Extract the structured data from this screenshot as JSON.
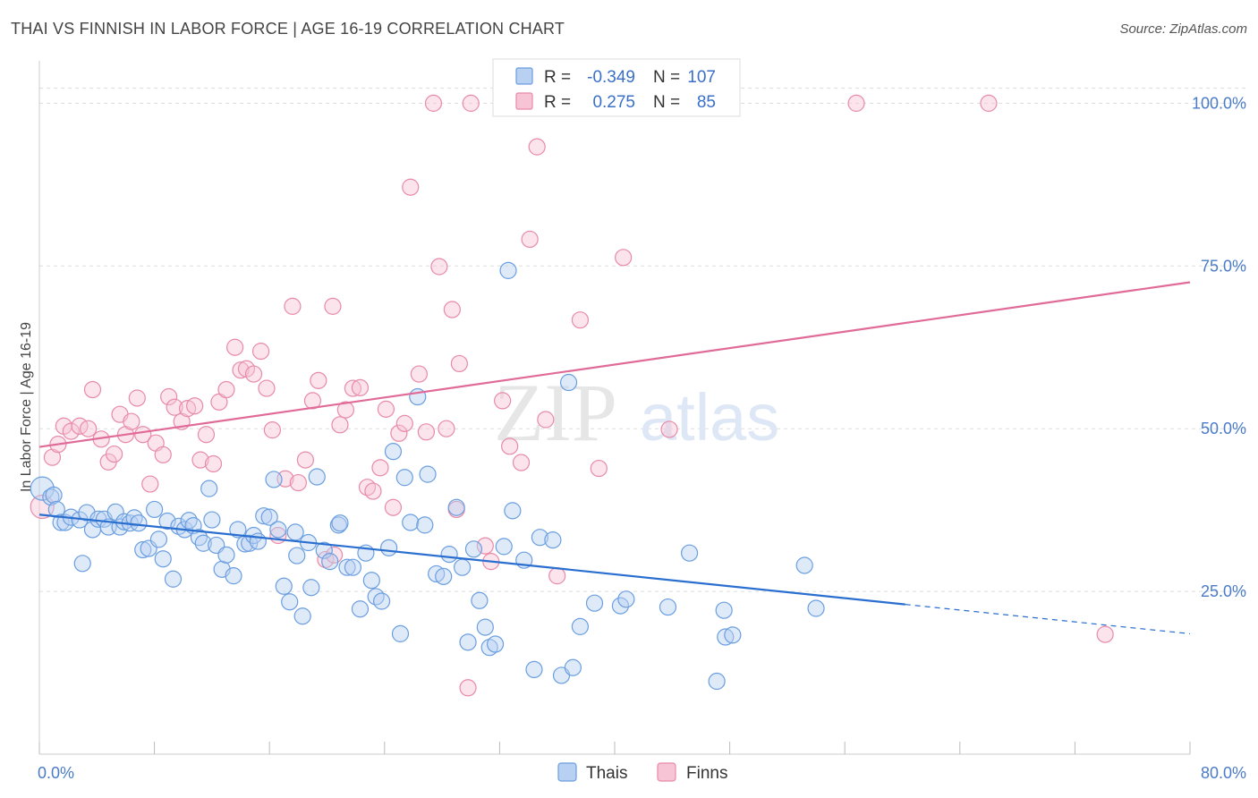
{
  "header": {
    "title": "THAI VS FINNISH IN LABOR FORCE | AGE 16-19 CORRELATION CHART",
    "source": "Source: ZipAtlas.com"
  },
  "watermark": {
    "part1": "ZIP",
    "part2": "atlas"
  },
  "colors": {
    "thai": "#6a9ee0",
    "thai_fill": "#b8d0f2",
    "thai_line": "#2a6fd0",
    "finn": "#e88aa8",
    "finn_fill": "#f6c4d4",
    "finn_line": "#e06a98",
    "grid": "#dddddd",
    "axis_text": "#4a7bc8"
  },
  "legend_box": {
    "rows": [
      {
        "r_label": "R =",
        "r_value": "-0.349",
        "n_label": "N =",
        "n_value": "107"
      },
      {
        "r_label": "R =",
        "r_value": "0.275",
        "n_label": "N =",
        "n_value": "85"
      }
    ]
  },
  "bottom_legend": {
    "thai": "Thais",
    "finn": "Finns"
  },
  "chart_data": {
    "type": "scatter",
    "xlabel": "",
    "ylabel": "In Labor Force | Age 16-19",
    "xlim": [
      0,
      80
    ],
    "ylim": [
      0,
      105
    ],
    "x_tick_labels": [
      "0.0%",
      "80.0%"
    ],
    "y_ticks": [
      25,
      50,
      75,
      100
    ],
    "y_tick_labels": [
      "25.0%",
      "50.0%",
      "75.0%",
      "100.0%"
    ],
    "grid": "horizontal dashed",
    "series": [
      {
        "name": "Thais",
        "r": -0.349,
        "n": 107,
        "trend": {
          "x0": 0,
          "y0": 36.8,
          "x1": 60.2,
          "y1": 23.0,
          "dash_to_x": 80,
          "dash_to_y": 18.5
        },
        "points": [
          [
            0.2,
            40.8
          ],
          [
            0.8,
            39.5
          ],
          [
            1.0,
            39.8
          ],
          [
            1.2,
            37.6
          ],
          [
            1.5,
            35.6
          ],
          [
            1.8,
            35.6
          ],
          [
            2.2,
            36.4
          ],
          [
            2.8,
            36.0
          ],
          [
            3.0,
            29.3
          ],
          [
            3.3,
            37.1
          ],
          [
            3.7,
            34.5
          ],
          [
            4.1,
            36.1
          ],
          [
            4.5,
            36.1
          ],
          [
            4.8,
            34.9
          ],
          [
            5.3,
            37.2
          ],
          [
            5.6,
            34.9
          ],
          [
            5.9,
            35.7
          ],
          [
            6.3,
            35.5
          ],
          [
            6.6,
            36.3
          ],
          [
            6.9,
            35.5
          ],
          [
            7.2,
            31.4
          ],
          [
            7.6,
            31.6
          ],
          [
            8.0,
            37.6
          ],
          [
            8.3,
            33.0
          ],
          [
            8.6,
            30.0
          ],
          [
            8.9,
            35.8
          ],
          [
            9.3,
            26.9
          ],
          [
            9.7,
            35.0
          ],
          [
            10.1,
            34.5
          ],
          [
            10.4,
            35.9
          ],
          [
            10.7,
            35.1
          ],
          [
            11.1,
            33.3
          ],
          [
            11.4,
            32.4
          ],
          [
            11.8,
            40.8
          ],
          [
            12.0,
            36.0
          ],
          [
            12.3,
            32.1
          ],
          [
            12.7,
            28.4
          ],
          [
            13.0,
            30.6
          ],
          [
            13.5,
            27.4
          ],
          [
            13.8,
            34.5
          ],
          [
            14.3,
            32.3
          ],
          [
            14.6,
            32.4
          ],
          [
            14.9,
            33.6
          ],
          [
            15.2,
            32.7
          ],
          [
            15.6,
            36.6
          ],
          [
            16.0,
            36.4
          ],
          [
            16.3,
            42.2
          ],
          [
            16.6,
            34.5
          ],
          [
            17.0,
            25.8
          ],
          [
            17.4,
            23.4
          ],
          [
            17.8,
            34.1
          ],
          [
            17.9,
            30.5
          ],
          [
            18.3,
            21.2
          ],
          [
            18.7,
            32.5
          ],
          [
            18.9,
            25.6
          ],
          [
            19.3,
            42.6
          ],
          [
            19.8,
            31.3
          ],
          [
            20.2,
            29.6
          ],
          [
            20.8,
            35.2
          ],
          [
            20.9,
            35.5
          ],
          [
            21.4,
            28.7
          ],
          [
            21.8,
            28.7
          ],
          [
            22.3,
            22.3
          ],
          [
            22.7,
            30.9
          ],
          [
            23.1,
            26.7
          ],
          [
            23.4,
            24.2
          ],
          [
            23.8,
            23.5
          ],
          [
            24.3,
            31.7
          ],
          [
            24.6,
            46.5
          ],
          [
            25.1,
            18.5
          ],
          [
            25.4,
            42.5
          ],
          [
            25.8,
            35.6
          ],
          [
            26.3,
            54.9
          ],
          [
            26.8,
            35.2
          ],
          [
            27.0,
            43.0
          ],
          [
            27.6,
            27.7
          ],
          [
            28.1,
            27.3
          ],
          [
            28.5,
            30.7
          ],
          [
            29.0,
            37.9
          ],
          [
            29.4,
            28.7
          ],
          [
            29.8,
            17.2
          ],
          [
            30.2,
            31.5
          ],
          [
            30.6,
            23.6
          ],
          [
            31.0,
            19.5
          ],
          [
            31.3,
            16.4
          ],
          [
            31.7,
            16.9
          ],
          [
            32.3,
            31.9
          ],
          [
            32.6,
            74.3
          ],
          [
            32.9,
            37.4
          ],
          [
            33.7,
            29.8
          ],
          [
            34.4,
            13.0
          ],
          [
            34.8,
            33.3
          ],
          [
            35.7,
            32.9
          ],
          [
            36.3,
            12.1
          ],
          [
            36.8,
            57.1
          ],
          [
            37.1,
            13.3
          ],
          [
            37.6,
            19.6
          ],
          [
            38.6,
            23.2
          ],
          [
            40.4,
            22.8
          ],
          [
            40.8,
            23.8
          ],
          [
            43.7,
            22.6
          ],
          [
            45.2,
            30.9
          ],
          [
            47.1,
            11.2
          ],
          [
            47.6,
            22.1
          ],
          [
            47.7,
            18.0
          ],
          [
            48.2,
            18.3
          ],
          [
            53.2,
            29.0
          ],
          [
            54.0,
            22.4
          ]
        ]
      },
      {
        "name": "Finns",
        "r": 0.275,
        "n": 85,
        "trend": {
          "x0": 0,
          "y0": 47.2,
          "x1": 80,
          "y1": 72.5
        },
        "points": [
          [
            0.2,
            38.0
          ],
          [
            0.9,
            45.6
          ],
          [
            1.3,
            47.6
          ],
          [
            1.7,
            50.4
          ],
          [
            2.2,
            49.6
          ],
          [
            2.8,
            50.4
          ],
          [
            3.4,
            50.0
          ],
          [
            3.7,
            56.0
          ],
          [
            4.3,
            48.4
          ],
          [
            4.8,
            44.9
          ],
          [
            5.2,
            46.1
          ],
          [
            5.6,
            52.2
          ],
          [
            6.0,
            49.1
          ],
          [
            6.4,
            51.1
          ],
          [
            6.8,
            54.7
          ],
          [
            7.2,
            49.1
          ],
          [
            7.7,
            41.5
          ],
          [
            8.1,
            47.8
          ],
          [
            8.6,
            46.0
          ],
          [
            9.0,
            54.9
          ],
          [
            9.4,
            53.3
          ],
          [
            9.9,
            51.1
          ],
          [
            10.3,
            53.1
          ],
          [
            10.8,
            53.5
          ],
          [
            11.2,
            45.2
          ],
          [
            11.6,
            49.1
          ],
          [
            12.1,
            44.6
          ],
          [
            12.5,
            54.1
          ],
          [
            13.0,
            56.0
          ],
          [
            13.6,
            62.5
          ],
          [
            14.0,
            59.0
          ],
          [
            14.4,
            59.2
          ],
          [
            14.9,
            58.4
          ],
          [
            15.4,
            61.9
          ],
          [
            15.8,
            56.2
          ],
          [
            16.2,
            49.8
          ],
          [
            16.6,
            33.6
          ],
          [
            17.1,
            42.3
          ],
          [
            17.6,
            68.8
          ],
          [
            18.0,
            41.7
          ],
          [
            18.5,
            45.2
          ],
          [
            19.0,
            54.3
          ],
          [
            19.4,
            57.4
          ],
          [
            19.9,
            29.9
          ],
          [
            20.4,
            68.8
          ],
          [
            20.9,
            50.6
          ],
          [
            21.3,
            52.9
          ],
          [
            21.8,
            56.2
          ],
          [
            22.3,
            56.3
          ],
          [
            22.8,
            41.0
          ],
          [
            23.2,
            40.4
          ],
          [
            23.7,
            44.0
          ],
          [
            24.1,
            53.0
          ],
          [
            24.6,
            37.9
          ],
          [
            25.0,
            49.3
          ],
          [
            25.4,
            50.8
          ],
          [
            25.8,
            87.1
          ],
          [
            26.4,
            58.4
          ],
          [
            26.9,
            49.5
          ],
          [
            27.4,
            100.0
          ],
          [
            27.8,
            74.9
          ],
          [
            28.3,
            50.0
          ],
          [
            28.7,
            68.3
          ],
          [
            29.2,
            60.0
          ],
          [
            29.8,
            10.2
          ],
          [
            30.0,
            100.0
          ],
          [
            31.0,
            32.0
          ],
          [
            31.4,
            29.6
          ],
          [
            32.2,
            54.3
          ],
          [
            32.7,
            47.3
          ],
          [
            33.5,
            44.8
          ],
          [
            34.1,
            79.1
          ],
          [
            34.6,
            93.3
          ],
          [
            35.2,
            51.4
          ],
          [
            36.0,
            27.4
          ],
          [
            37.6,
            66.7
          ],
          [
            38.9,
            43.9
          ],
          [
            40.6,
            76.3
          ],
          [
            41.6,
            100.0
          ],
          [
            43.8,
            49.9
          ],
          [
            56.8,
            100.0
          ],
          [
            66.0,
            100.0
          ],
          [
            74.1,
            18.4
          ],
          [
            29.0,
            37.6
          ],
          [
            20.5,
            30.6
          ]
        ]
      }
    ]
  }
}
